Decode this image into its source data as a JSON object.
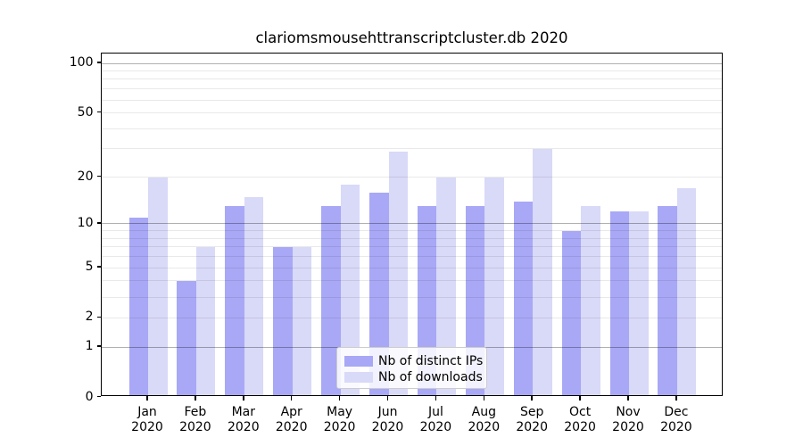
{
  "title": "clariomsmousehttranscriptcluster.db 2020",
  "chart_data": {
    "type": "bar",
    "title": "clariomsmousehttranscriptcluster.db 2020",
    "categories": [
      "Jan",
      "Feb",
      "Mar",
      "Apr",
      "May",
      "Jun",
      "Jul",
      "Aug",
      "Sep",
      "Oct",
      "Nov",
      "Dec"
    ],
    "year": "2020",
    "series": [
      {
        "name": "Nb of distinct IPs",
        "color": "#a8a8f6",
        "values": [
          11,
          4,
          13,
          7,
          13,
          16,
          13,
          13,
          14,
          9,
          12,
          13
        ]
      },
      {
        "name": "Nb of downloads",
        "color": "#d9d9f8",
        "values": [
          20,
          7,
          15,
          7,
          18,
          29,
          20,
          20,
          30,
          13,
          12,
          17
        ]
      }
    ],
    "yticks": [
      0,
      1,
      2,
      5,
      10,
      20,
      50,
      100
    ],
    "ylabel": "",
    "xlabel": "",
    "scale": "log1p",
    "ylim": [
      0,
      120
    ],
    "grid": true,
    "legend_position": "lower center"
  }
}
